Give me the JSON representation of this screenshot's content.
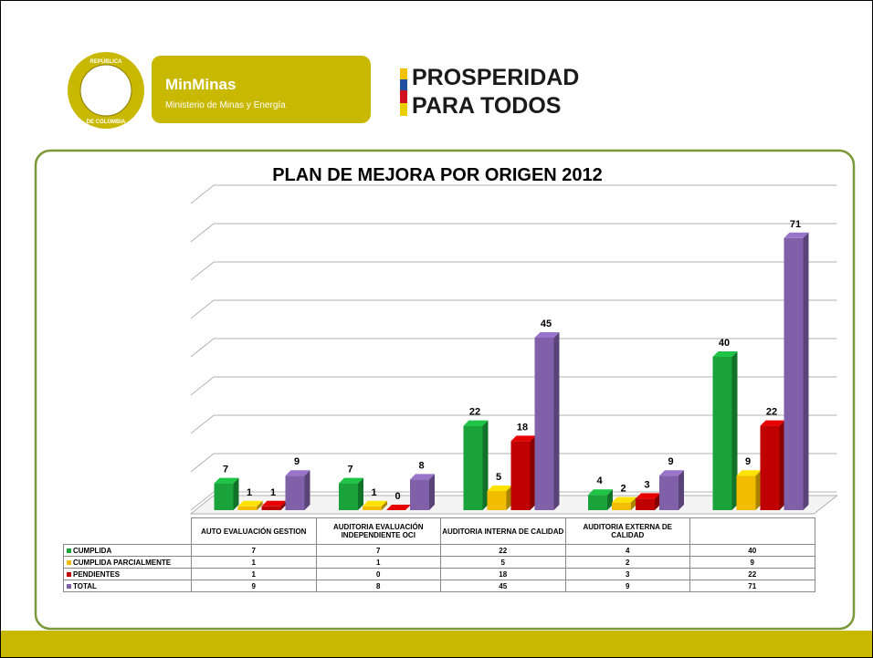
{
  "header": {
    "seal_top": "REPÚBLICA",
    "seal_bottom": "DE COLOMBIA",
    "brand": "MinMinas",
    "brand_sub": "Ministerio de Minas y Energía",
    "slogan_1": "PROSPERIDAD",
    "slogan_2": "PARA TODOS"
  },
  "chart_data": {
    "type": "bar",
    "title": "PLAN DE MEJORA POR ORIGEN 2012",
    "categories": [
      "AUTO EVALUACIÓN GESTION",
      "AUDITORIA EVALUACIÓN INDEPENDIENTE OCI",
      "AUDITORIA INTERNA DE CALIDAD",
      "AUDITORIA EXTERNA DE CALIDAD",
      null
    ],
    "series": [
      {
        "name": "CUMPLIDA",
        "color": "#1aa33a",
        "values": [
          7,
          7,
          22,
          4,
          40
        ]
      },
      {
        "name": "CUMPLIDA PARCIALMENTE",
        "color": "#f2bd00",
        "values": [
          1,
          1,
          5,
          2,
          9
        ]
      },
      {
        "name": "PENDIENTES",
        "color": "#c00000",
        "values": [
          1,
          0,
          18,
          3,
          22
        ]
      },
      {
        "name": "TOTAL",
        "color": "#8060a8",
        "values": [
          9,
          8,
          45,
          9,
          71
        ]
      }
    ],
    "ylim": [
      0,
      80
    ],
    "yticks": [
      0,
      10,
      20,
      30,
      40,
      50,
      60,
      70,
      80
    ],
    "grid": true
  }
}
